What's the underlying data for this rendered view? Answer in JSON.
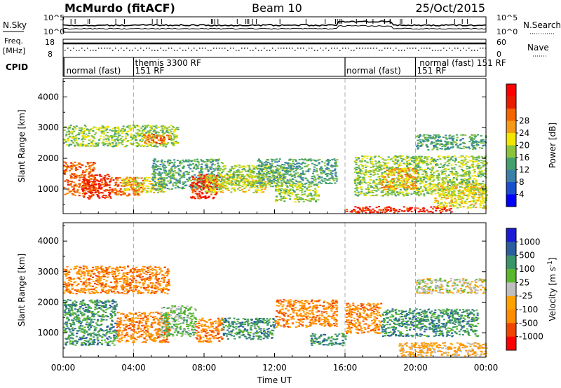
{
  "header": {
    "station": "McMurdo (fitACF)",
    "beam": "Beam 10",
    "date": "25/Oct/2015"
  },
  "labels": {
    "nsky": "N.Sky",
    "nsearch": "N.Search",
    "freq_line1": "Freq.",
    "freq_line2": "[MHz]",
    "nave": "Nave",
    "cpid": "CPID"
  },
  "ticks": {
    "nsky_left": [
      "10^5",
      "10^0"
    ],
    "nsky_right": [
      "10^5",
      "10^0"
    ],
    "freq_left": [
      "18",
      "8"
    ],
    "freq_right": [
      "60",
      "0"
    ]
  },
  "cpid_labels": [
    {
      "t": 0.1,
      "row": 1,
      "text": "normal (fast)"
    },
    {
      "t": 4.0,
      "row": 1,
      "text": "151 RF"
    },
    {
      "t": 4.0,
      "row": 0,
      "text": "themis 3300 RF"
    },
    {
      "t": 16.0,
      "row": 1,
      "text": "normal (fast)"
    },
    {
      "t": 20.0,
      "row": 1,
      "text": "151 RF"
    },
    {
      "t": 20.15,
      "row": 0,
      "text": "normal (fast) 151 RF"
    }
  ],
  "colors": {
    "power": [
      "#0000ff",
      "#1a4fd0",
      "#3a7fa8",
      "#43a16e",
      "#8cc43c",
      "#f2e500",
      "#f59a17",
      "#f46400",
      "#e81d00",
      "#ff0000"
    ],
    "velocity": [
      "#ff0000",
      "#f04500",
      "#ff8c00",
      "#ffa200",
      "#bfbfbf",
      "#5bb82e",
      "#3a9468",
      "#2a5ea0",
      "#1b1bd6"
    ]
  },
  "chart_data": [
    {
      "type": "heatmap",
      "name": "power",
      "ylabel": "Slant Range [km]",
      "xlabel": "Time UT",
      "xlim": [
        0,
        24
      ],
      "ylim": [
        200,
        4600
      ],
      "yticks": [
        1000,
        2000,
        3000,
        4000
      ],
      "xtick_labels": [
        "00:00",
        "04:00",
        "08:00",
        "12:00",
        "16:00",
        "20:00",
        "00:00"
      ],
      "colorbar": {
        "label": "Power [dB]",
        "ticks": [
          "4",
          "8",
          "12",
          "16",
          "20",
          "24",
          "28"
        ]
      },
      "bands": [
        {
          "t0": 0.0,
          "t1": 1.8,
          "r0": 800,
          "r1": 1900,
          "v": 7
        },
        {
          "t0": 1.0,
          "t1": 2.7,
          "r0": 700,
          "r1": 1500,
          "v": 8
        },
        {
          "t0": 2.7,
          "t1": 4.5,
          "r0": 800,
          "r1": 1400,
          "v": 7
        },
        {
          "t0": 3.3,
          "t1": 5.8,
          "r0": 900,
          "r1": 1400,
          "v": 5
        },
        {
          "t0": 0.0,
          "t1": 6.5,
          "r0": 2400,
          "r1": 3100,
          "v": 4
        },
        {
          "t0": 4.5,
          "t1": 6.0,
          "r0": 2500,
          "r1": 2800,
          "v": 7
        },
        {
          "t0": 5.0,
          "t1": 9.0,
          "r0": 1000,
          "r1": 2000,
          "v": 3
        },
        {
          "t0": 7.2,
          "t1": 8.7,
          "r0": 700,
          "r1": 1500,
          "v": 8
        },
        {
          "t0": 8.0,
          "t1": 11.5,
          "r0": 900,
          "r1": 1500,
          "v": 5
        },
        {
          "t0": 9.0,
          "t1": 13.0,
          "r0": 1100,
          "r1": 1800,
          "v": 4
        },
        {
          "t0": 11.0,
          "t1": 15.5,
          "r0": 1200,
          "r1": 2000,
          "v": 3
        },
        {
          "t0": 12.0,
          "t1": 14.5,
          "r0": 600,
          "r1": 1200,
          "v": 4
        },
        {
          "t0": 16.0,
          "t1": 22.0,
          "r0": 250,
          "r1": 450,
          "v": 8
        },
        {
          "t0": 16.5,
          "t1": 24.0,
          "r0": 800,
          "r1": 2100,
          "v": 4
        },
        {
          "t0": 18.0,
          "t1": 20.0,
          "r0": 1000,
          "r1": 1700,
          "v": 6
        },
        {
          "t0": 20.0,
          "t1": 24.0,
          "r0": 2300,
          "r1": 2800,
          "v": 3
        },
        {
          "t0": 21.0,
          "t1": 24.0,
          "r0": 400,
          "r1": 1200,
          "v": 5
        }
      ]
    },
    {
      "type": "heatmap",
      "name": "velocity",
      "ylabel": "Slant Range [km]",
      "xlabel": "Time UT",
      "xlim": [
        0,
        24
      ],
      "ylim": [
        200,
        4600
      ],
      "yticks": [
        1000,
        2000,
        3000,
        4000
      ],
      "xtick_labels": [
        "00:00",
        "04:00",
        "08:00",
        "12:00",
        "16:00",
        "20:00",
        "00:00"
      ],
      "colorbar": {
        "label": "Velocity [m s^-1]",
        "ticks": [
          "1000",
          "500",
          "100",
          "25",
          "-25",
          "-100",
          "-500",
          "-1000"
        ]
      },
      "bands": [
        {
          "t0": 0.0,
          "t1": 3.0,
          "r0": 600,
          "r1": 2100,
          "v": 6
        },
        {
          "t0": 3.0,
          "t1": 6.0,
          "r0": 700,
          "r1": 1700,
          "v": 2
        },
        {
          "t0": 0.0,
          "t1": 6.0,
          "r0": 2300,
          "r1": 3200,
          "v": 2
        },
        {
          "t0": 5.5,
          "t1": 7.5,
          "r0": 900,
          "r1": 1900,
          "v": 5
        },
        {
          "t0": 7.5,
          "t1": 9.0,
          "r0": 700,
          "r1": 1500,
          "v": 2
        },
        {
          "t0": 9.0,
          "t1": 12.0,
          "r0": 800,
          "r1": 1500,
          "v": 6
        },
        {
          "t0": 12.0,
          "t1": 15.5,
          "r0": 1200,
          "r1": 2100,
          "v": 2
        },
        {
          "t0": 14.0,
          "t1": 16.0,
          "r0": 600,
          "r1": 1000,
          "v": 6
        },
        {
          "t0": 16.0,
          "t1": 18.0,
          "r0": 1000,
          "r1": 2000,
          "v": 2
        },
        {
          "t0": 18.0,
          "t1": 23.5,
          "r0": 900,
          "r1": 1800,
          "v": 6
        },
        {
          "t0": 20.0,
          "t1": 24.0,
          "r0": 2300,
          "r1": 2800,
          "v": 4
        },
        {
          "t0": 19.0,
          "t1": 24.0,
          "r0": 250,
          "r1": 700,
          "v": 3
        }
      ]
    }
  ]
}
